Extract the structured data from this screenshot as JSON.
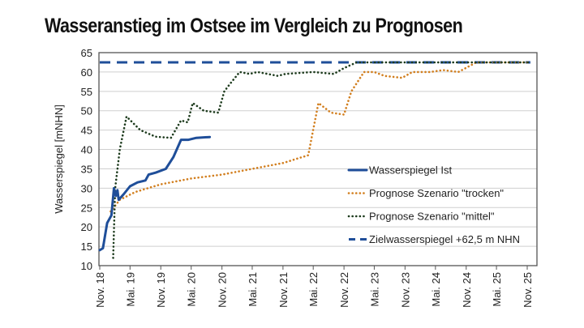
{
  "title": "Wasseranstieg im Ostsee im Vergleich zu Prognosen",
  "chart_data": {
    "type": "line",
    "title": "Wasseranstieg im Ostsee im Vergleich zu Prognosen",
    "ylabel": "Wasserspiegel [mNHN]",
    "xlabel": "",
    "ylim": [
      10,
      65
    ],
    "yticks": [
      "10",
      "15",
      "20",
      "25",
      "30",
      "35",
      "40",
      "45",
      "50",
      "55",
      "60",
      "65"
    ],
    "xlim": [
      "2018-11-01",
      "2025-11-01"
    ],
    "xticks": [
      {
        "date": "2018-11-01",
        "label": "Nov. 18"
      },
      {
        "date": "2019-05-01",
        "label": "Mai. 19"
      },
      {
        "date": "2019-11-01",
        "label": "Nov. 19"
      },
      {
        "date": "2020-05-01",
        "label": "Mai. 20"
      },
      {
        "date": "2020-11-01",
        "label": "Nov. 20"
      },
      {
        "date": "2021-05-01",
        "label": "Mai. 21"
      },
      {
        "date": "2021-11-01",
        "label": "Nov. 21"
      },
      {
        "date": "2022-05-01",
        "label": "Mai. 22"
      },
      {
        "date": "2022-11-01",
        "label": "Nov. 22"
      },
      {
        "date": "2023-05-01",
        "label": "Mai. 23"
      },
      {
        "date": "2023-11-01",
        "label": "Nov. 23"
      },
      {
        "date": "2024-05-01",
        "label": "Mai. 24"
      },
      {
        "date": "2024-11-01",
        "label": "Nov. 24"
      },
      {
        "date": "2025-05-01",
        "label": "Mai. 25"
      },
      {
        "date": "2025-11-01",
        "label": "Nov. 25"
      }
    ],
    "grid": true,
    "legend_position": "bottom-right",
    "series": [
      {
        "name": "Wasserspiegel Ist",
        "color": "#1f4e99",
        "style": "solid",
        "points": [
          [
            "2018-11-01",
            14
          ],
          [
            "2018-11-20",
            14.5
          ],
          [
            "2018-12-15",
            21
          ],
          [
            "2019-01-10",
            23
          ],
          [
            "2019-01-25",
            30
          ],
          [
            "2019-02-05",
            28
          ],
          [
            "2019-02-15",
            29.5
          ],
          [
            "2019-02-22",
            27
          ],
          [
            "2019-03-25",
            28.5
          ],
          [
            "2019-05-01",
            30.5
          ],
          [
            "2019-06-15",
            31.5
          ],
          [
            "2019-08-01",
            32
          ],
          [
            "2019-08-20",
            33.5
          ],
          [
            "2019-10-01",
            34
          ],
          [
            "2019-12-01",
            35
          ],
          [
            "2020-01-15",
            38
          ],
          [
            "2020-03-01",
            42.5
          ],
          [
            "2020-04-15",
            42.5
          ],
          [
            "2020-06-01",
            43
          ],
          [
            "2020-08-20",
            43.2
          ]
        ]
      },
      {
        "name": "Prognose Szenario \"trocken\"",
        "color": "#d27f1f",
        "style": "dotted",
        "points": [
          [
            "2019-01-05",
            24
          ],
          [
            "2019-03-01",
            27
          ],
          [
            "2019-06-01",
            29
          ],
          [
            "2019-11-01",
            31
          ],
          [
            "2020-05-01",
            32.5
          ],
          [
            "2020-11-01",
            33.5
          ],
          [
            "2021-05-01",
            35
          ],
          [
            "2021-11-01",
            36.5
          ],
          [
            "2022-04-01",
            38.5
          ],
          [
            "2022-06-01",
            52
          ],
          [
            "2022-08-15",
            49.5
          ],
          [
            "2022-11-01",
            49
          ],
          [
            "2022-12-15",
            55
          ],
          [
            "2023-03-01",
            60
          ],
          [
            "2023-05-01",
            60
          ],
          [
            "2023-07-01",
            59
          ],
          [
            "2023-10-15",
            58.5
          ],
          [
            "2023-12-15",
            60
          ],
          [
            "2024-04-01",
            60
          ],
          [
            "2024-06-15",
            60.5
          ],
          [
            "2024-09-15",
            60
          ],
          [
            "2025-01-01",
            62.5
          ],
          [
            "2025-11-20",
            62.5
          ]
        ]
      },
      {
        "name": "Prognose Szenario \"mittel\"",
        "color": "#1d3b1d",
        "style": "dotted",
        "points": [
          [
            "2019-01-20",
            12
          ],
          [
            "2019-02-01",
            30
          ],
          [
            "2019-03-01",
            40
          ],
          [
            "2019-04-10",
            48.5
          ],
          [
            "2019-07-01",
            45
          ],
          [
            "2019-10-01",
            43.3
          ],
          [
            "2020-01-01",
            43
          ],
          [
            "2020-03-01",
            47.5
          ],
          [
            "2020-04-10",
            47
          ],
          [
            "2020-05-10",
            52
          ],
          [
            "2020-07-15",
            50
          ],
          [
            "2020-10-10",
            49.5
          ],
          [
            "2020-11-15",
            55
          ],
          [
            "2020-12-20",
            57
          ],
          [
            "2021-02-15",
            60
          ],
          [
            "2021-04-15",
            59.5
          ],
          [
            "2021-06-01",
            60
          ],
          [
            "2021-10-01",
            59
          ],
          [
            "2021-11-15",
            59.5
          ],
          [
            "2022-05-01",
            60
          ],
          [
            "2022-09-01",
            59.5
          ],
          [
            "2022-11-01",
            61
          ],
          [
            "2023-01-15",
            62.5
          ],
          [
            "2025-11-20",
            62.5
          ]
        ]
      },
      {
        "name": "Zielwasserspiegel +62,5 m NHN",
        "color": "#1f4e99",
        "style": "dashed",
        "points": [
          [
            "2018-11-01",
            62.5
          ],
          [
            "2025-11-20",
            62.5
          ]
        ]
      }
    ]
  }
}
